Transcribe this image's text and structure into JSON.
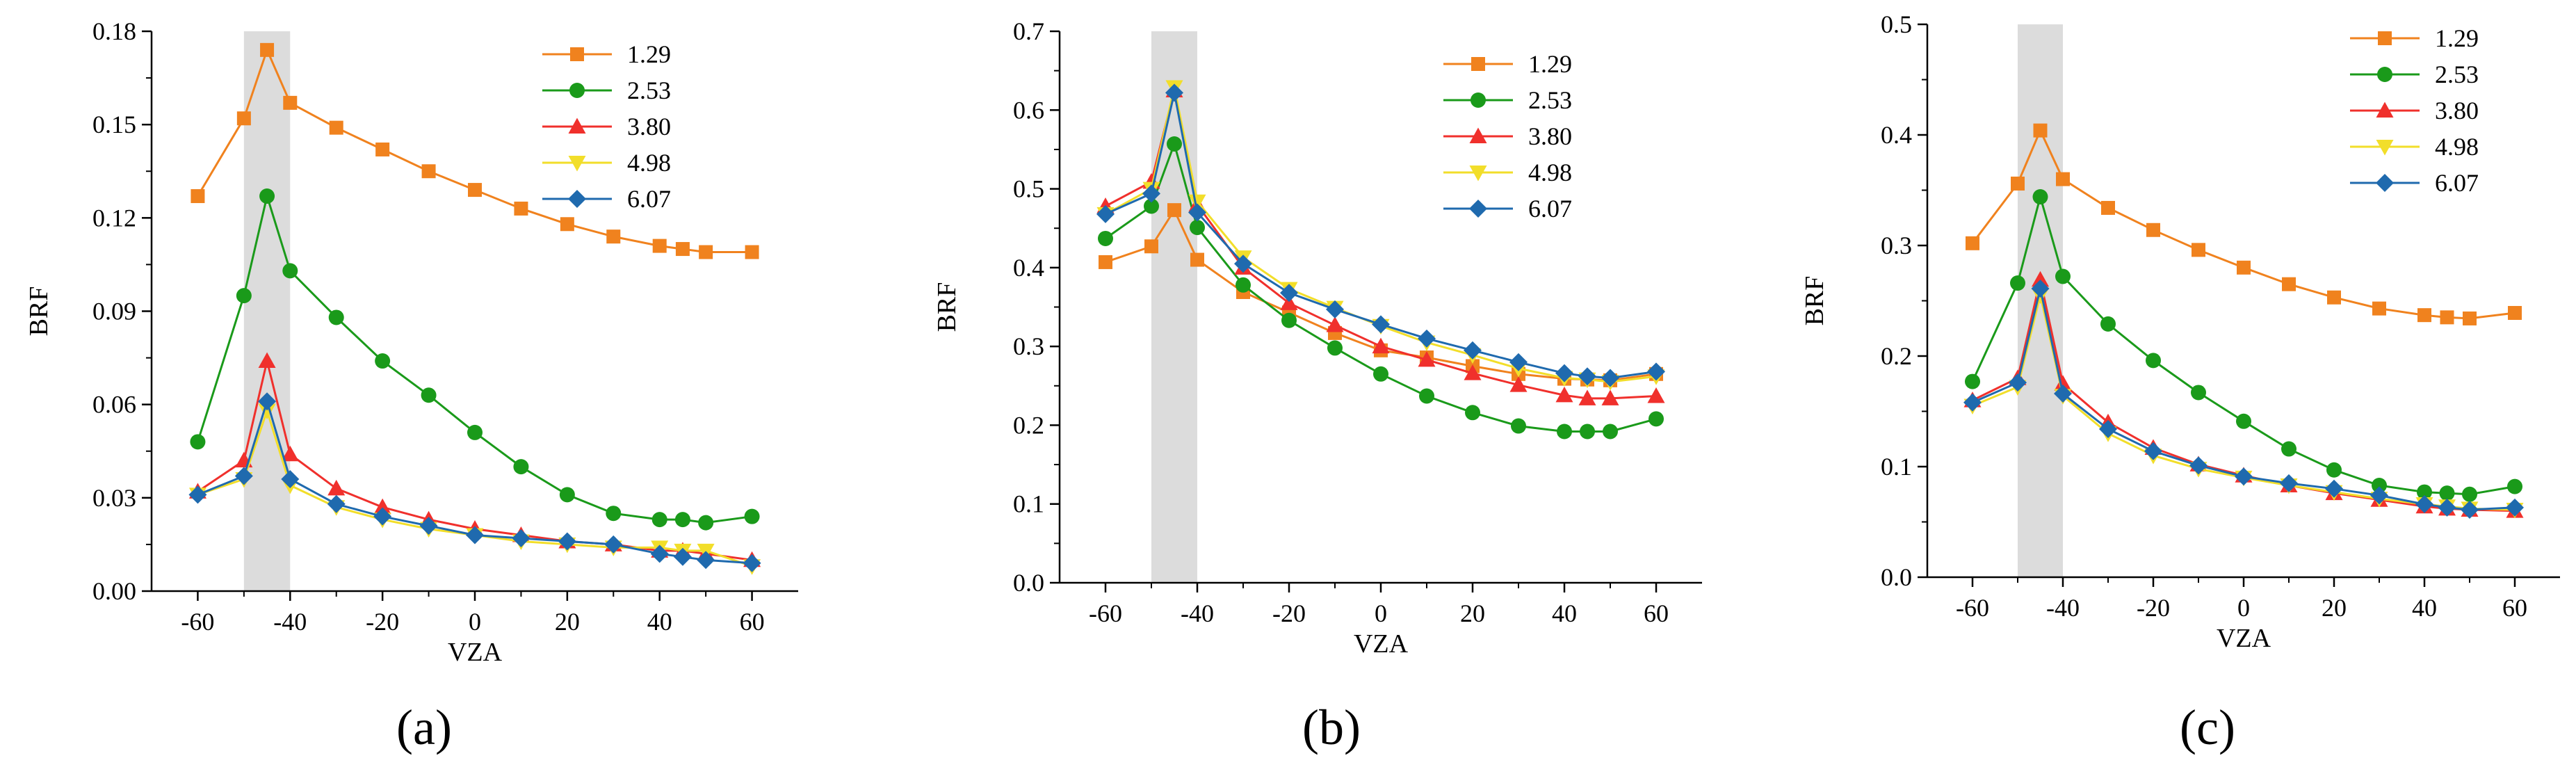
{
  "series_styles": [
    {
      "name": "1.29",
      "color": "#F0821E",
      "marker": "square"
    },
    {
      "name": "2.53",
      "color": "#1A9A1A",
      "marker": "circle"
    },
    {
      "name": "3.80",
      "color": "#F0302C",
      "marker": "triangle-up"
    },
    {
      "name": "4.98",
      "color": "#F2DE2A",
      "marker": "triangle-down"
    },
    {
      "name": "6.07",
      "color": "#1F6AAE",
      "marker": "diamond"
    }
  ],
  "highlight_color": "#DCDCDC",
  "chart_data": [
    {
      "panel_label": "(a)",
      "type": "line",
      "xlabel": "VZA",
      "ylabel": "BRF",
      "xlim": [
        -70,
        70
      ],
      "ylim": [
        0,
        0.18
      ],
      "xticks": [
        -60,
        -40,
        -20,
        0,
        20,
        40,
        60
      ],
      "xtick_labels": [
        "-60",
        "-40",
        "-20",
        "0",
        "20",
        "40",
        "60"
      ],
      "yticks": [
        0,
        0.03,
        0.06,
        0.09,
        0.12,
        0.15,
        0.18
      ],
      "ytick_labels": [
        "0.00",
        "0.03",
        "0.06",
        "0.09",
        "0.12",
        "0.15",
        "0.18"
      ],
      "highlight_x": [
        -50,
        -40
      ],
      "legend_position": "top-right",
      "x": [
        -60,
        -50,
        -45,
        -40,
        -30,
        -20,
        -10,
        0,
        10,
        20,
        30,
        40,
        45,
        50,
        60
      ],
      "series": [
        {
          "name": "1.29",
          "values": [
            0.127,
            0.152,
            0.174,
            0.157,
            0.149,
            0.142,
            0.135,
            0.129,
            0.123,
            0.118,
            0.114,
            0.111,
            0.11,
            0.109,
            0.109
          ]
        },
        {
          "name": "2.53",
          "values": [
            0.048,
            0.095,
            0.127,
            0.103,
            0.088,
            0.074,
            0.063,
            0.051,
            0.04,
            0.031,
            0.025,
            0.023,
            0.023,
            0.022,
            0.024
          ]
        },
        {
          "name": "3.80",
          "values": [
            0.032,
            0.042,
            0.074,
            0.044,
            0.033,
            0.027,
            0.023,
            0.02,
            0.018,
            0.016,
            0.015,
            0.013,
            0.013,
            0.012,
            0.01
          ]
        },
        {
          "name": "4.98",
          "values": [
            0.031,
            0.036,
            0.058,
            0.034,
            0.027,
            0.023,
            0.02,
            0.018,
            0.016,
            0.015,
            0.014,
            0.014,
            0.013,
            0.013,
            0.008
          ]
        },
        {
          "name": "6.07",
          "values": [
            0.031,
            0.037,
            0.061,
            0.036,
            0.028,
            0.024,
            0.021,
            0.018,
            0.017,
            0.016,
            0.015,
            0.012,
            0.011,
            0.01,
            0.009
          ]
        }
      ]
    },
    {
      "panel_label": "(b)",
      "type": "line",
      "xlabel": "VZA",
      "ylabel": "BRF",
      "xlim": [
        -70,
        70
      ],
      "ylim": [
        0,
        0.7
      ],
      "xticks": [
        -60,
        -40,
        -20,
        0,
        20,
        40,
        60
      ],
      "xtick_labels": [
        "-60",
        "-40",
        "-20",
        "0",
        "20",
        "40",
        "60"
      ],
      "yticks": [
        0,
        0.1,
        0.2,
        0.3,
        0.4,
        0.5,
        0.6,
        0.7
      ],
      "ytick_labels": [
        "0.0",
        "0.1",
        "0.2",
        "0.3",
        "0.4",
        "0.5",
        "0.6",
        "0.7"
      ],
      "highlight_x": [
        -50,
        -40
      ],
      "legend_position": "top-right",
      "x": [
        -60,
        -50,
        -45,
        -40,
        -30,
        -20,
        -10,
        0,
        10,
        20,
        30,
        40,
        45,
        50,
        60
      ],
      "series": [
        {
          "name": "1.29",
          "values": [
            0.407,
            0.427,
            0.473,
            0.41,
            0.369,
            0.343,
            0.317,
            0.295,
            0.286,
            0.275,
            0.265,
            0.259,
            0.258,
            0.257,
            0.265
          ]
        },
        {
          "name": "2.53",
          "values": [
            0.437,
            0.478,
            0.557,
            0.451,
            0.378,
            0.333,
            0.298,
            0.265,
            0.237,
            0.216,
            0.199,
            0.192,
            0.192,
            0.192,
            0.208
          ]
        },
        {
          "name": "3.80",
          "values": [
            0.478,
            0.509,
            0.625,
            0.48,
            0.4,
            0.355,
            0.327,
            0.3,
            0.283,
            0.266,
            0.251,
            0.238,
            0.234,
            0.234,
            0.237
          ]
        },
        {
          "name": "4.98",
          "values": [
            0.468,
            0.5,
            0.629,
            0.484,
            0.413,
            0.373,
            0.349,
            0.326,
            0.305,
            0.289,
            0.272,
            0.26,
            0.258,
            0.255,
            0.262
          ]
        },
        {
          "name": "6.07",
          "values": [
            0.468,
            0.494,
            0.622,
            0.47,
            0.405,
            0.368,
            0.347,
            0.328,
            0.31,
            0.295,
            0.28,
            0.266,
            0.262,
            0.26,
            0.268
          ]
        }
      ]
    },
    {
      "panel_label": "(c)",
      "type": "line",
      "xlabel": "VZA",
      "ylabel": "BRF",
      "xlim": [
        -70,
        70
      ],
      "ylim": [
        0,
        0.5
      ],
      "xticks": [
        -60,
        -40,
        -20,
        0,
        20,
        40,
        60
      ],
      "xtick_labels": [
        "-60",
        "-40",
        "-20",
        "0",
        "20",
        "40",
        "60"
      ],
      "yticks": [
        0,
        0.1,
        0.2,
        0.3,
        0.4,
        0.5
      ],
      "ytick_labels": [
        "0.0",
        "0.1",
        "0.2",
        "0.3",
        "0.4",
        "0.5"
      ],
      "highlight_x": [
        -50,
        -40
      ],
      "legend_position": "top-right",
      "x": [
        -60,
        -50,
        -45,
        -40,
        -30,
        -20,
        -10,
        0,
        10,
        20,
        30,
        40,
        45,
        50,
        60
      ],
      "series": [
        {
          "name": "1.29",
          "values": [
            0.302,
            0.356,
            0.404,
            0.36,
            0.334,
            0.314,
            0.296,
            0.28,
            0.265,
            0.253,
            0.243,
            0.237,
            0.235,
            0.234,
            0.239
          ]
        },
        {
          "name": "2.53",
          "values": [
            0.177,
            0.266,
            0.344,
            0.272,
            0.229,
            0.196,
            0.167,
            0.141,
            0.116,
            0.097,
            0.083,
            0.077,
            0.076,
            0.075,
            0.082
          ]
        },
        {
          "name": "3.80",
          "values": [
            0.16,
            0.18,
            0.269,
            0.175,
            0.14,
            0.117,
            0.102,
            0.092,
            0.083,
            0.076,
            0.07,
            0.064,
            0.062,
            0.061,
            0.06
          ]
        },
        {
          "name": "4.98",
          "values": [
            0.155,
            0.172,
            0.255,
            0.164,
            0.13,
            0.11,
            0.098,
            0.09,
            0.083,
            0.077,
            0.071,
            0.066,
            0.064,
            0.062,
            0.061
          ]
        },
        {
          "name": "6.07",
          "values": [
            0.158,
            0.176,
            0.261,
            0.166,
            0.134,
            0.114,
            0.101,
            0.091,
            0.085,
            0.08,
            0.074,
            0.066,
            0.063,
            0.061,
            0.063
          ]
        }
      ]
    }
  ]
}
